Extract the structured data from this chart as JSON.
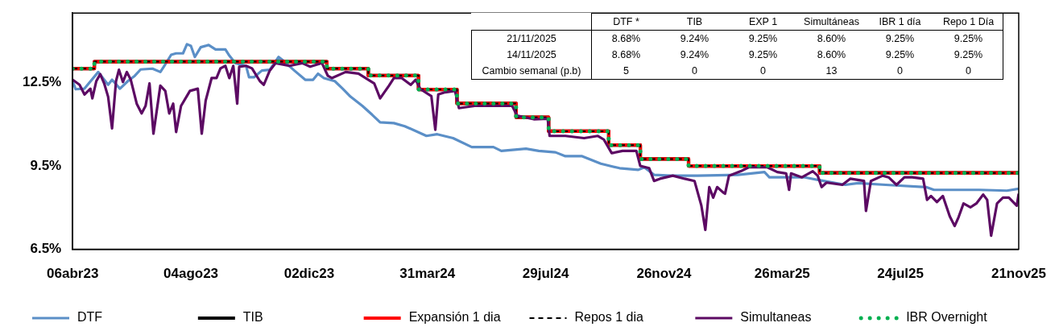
{
  "chart_data": {
    "type": "line",
    "marker": "none",
    "grid": false,
    "legend": "bottom",
    "xlim": [
      "2023-04-06",
      "2025-11-21"
    ],
    "xticks": [
      {
        "value": "2023-04-06",
        "label": "06abr23"
      },
      {
        "value": "2023-08-04",
        "label": "04ago23"
      },
      {
        "value": "2023-12-02",
        "label": "02dic23"
      },
      {
        "value": "2024-03-31",
        "label": "31mar24"
      },
      {
        "value": "2024-07-29",
        "label": "29jul24"
      },
      {
        "value": "2024-11-26",
        "label": "26nov24"
      },
      {
        "value": "2025-03-26",
        "label": "26mar25"
      },
      {
        "value": "2025-07-24",
        "label": "24jul25"
      },
      {
        "value": "2025-11-21",
        "label": "21nov25"
      }
    ],
    "ylim": [
      6.5,
      15
    ],
    "yticks": [
      {
        "value": 6.5,
        "label": "6.5%"
      },
      {
        "value": 9.5,
        "label": "9.5%"
      },
      {
        "value": 12.5,
        "label": "12.5%"
      }
    ],
    "annotations": [
      "DTF *",
      "TIB",
      "EXP 1",
      "Simultáneas",
      "IBR 1 día",
      "Repo 1 Día",
      "21/11/2025",
      "8.68%",
      "9.24%",
      "9.25%",
      "8.60%",
      "9.25%",
      "9.25%",
      "14/11/2025",
      "8.68%",
      "9.24%",
      "9.25%",
      "8.60%",
      "9.25%",
      "9.25%",
      "Cambio semanal (p.b)",
      "5",
      "0",
      "0",
      "13",
      "0",
      "0"
    ],
    "series": [
      {
        "name": "DTF",
        "color": "#5b8fc7",
        "type": "line",
        "line_style": "solid",
        "x": [
          "2023-04-06",
          "2023-04-09",
          "2023-04-18",
          "2023-05-02",
          "2023-05-12",
          "2023-05-16",
          "2023-05-24",
          "2023-06-01",
          "2023-06-08",
          "2023-06-14",
          "2023-06-26",
          "2023-07-04",
          "2023-07-08",
          "2023-07-15",
          "2023-07-20",
          "2023-07-27",
          "2023-07-31",
          "2023-08-04",
          "2023-08-08",
          "2023-08-14",
          "2023-08-22",
          "2023-08-29",
          "2023-09-08",
          "2023-09-12",
          "2023-09-18",
          "2023-09-29",
          "2023-10-02",
          "2023-10-07",
          "2023-10-15",
          "2023-10-23",
          "2023-11-01",
          "2023-11-06",
          "2023-11-17",
          "2023-11-28",
          "2023-12-06",
          "2023-12-11",
          "2023-12-17",
          "2023-12-28",
          "2024-01-05",
          "2024-01-13",
          "2024-01-25",
          "2024-02-04",
          "2024-02-12",
          "2024-02-26",
          "2024-03-08",
          "2024-03-30",
          "2024-04-10",
          "2024-04-26",
          "2024-05-15",
          "2024-06-06",
          "2024-06-14",
          "2024-07-09",
          "2024-07-22",
          "2024-08-08",
          "2024-08-18",
          "2024-09-04",
          "2024-09-23",
          "2024-10-12",
          "2024-10-31",
          "2024-11-06",
          "2024-11-16",
          "2024-12-03",
          "2024-12-30",
          "2025-02-09",
          "2025-03-08",
          "2025-03-13",
          "2025-04-18",
          "2025-05-07",
          "2025-05-29",
          "2025-06-11",
          "2025-07-09",
          "2025-08-19",
          "2025-08-27",
          "2025-10-12",
          "2025-11-09",
          "2025-11-21"
        ],
        "values": [
          12.56,
          12.26,
          12.28,
          12.88,
          12.42,
          12.6,
          12.28,
          12.55,
          12.74,
          12.97,
          13.0,
          12.88,
          13.1,
          13.5,
          13.55,
          13.55,
          13.88,
          13.82,
          13.42,
          13.77,
          13.85,
          13.69,
          13.69,
          13.47,
          13.2,
          13.1,
          12.69,
          12.69,
          12.93,
          12.96,
          13.42,
          13.28,
          12.93,
          12.6,
          12.6,
          12.82,
          12.66,
          12.55,
          12.28,
          11.99,
          11.66,
          11.34,
          11.07,
          11.04,
          10.93,
          10.58,
          10.64,
          10.5,
          10.18,
          10.18,
          10.04,
          10.12,
          10.04,
          9.99,
          9.85,
          9.85,
          9.58,
          9.42,
          9.36,
          9.45,
          9.18,
          9.15,
          9.15,
          9.18,
          9.28,
          9.09,
          9.09,
          8.96,
          8.82,
          8.88,
          8.82,
          8.74,
          8.64,
          8.64,
          8.61,
          8.68
        ]
      },
      {
        "name": "TIB",
        "color": "#000000",
        "type": "step",
        "line_style": "solid",
        "x": [
          "2023-04-06",
          "2023-04-28",
          "2023-12-20",
          "2024-01-31",
          "2024-03-22",
          "2024-04-30",
          "2024-06-29",
          "2024-08-01",
          "2024-10-01",
          "2024-11-02",
          "2024-12-21",
          "2025-05-03",
          "2025-11-21"
        ],
        "values": [
          13.0,
          13.25,
          13.0,
          12.75,
          12.25,
          11.75,
          11.25,
          10.75,
          10.25,
          9.75,
          9.5,
          9.25,
          9.25
        ]
      },
      {
        "name": "Expansión 1 dia",
        "color": "#ff0000",
        "type": "step",
        "line_style": "solid",
        "x": [
          "2023-04-06",
          "2023-04-28",
          "2023-12-20",
          "2024-01-31",
          "2024-03-22",
          "2024-04-30",
          "2024-06-29",
          "2024-08-01",
          "2024-10-01",
          "2024-11-02",
          "2024-12-21",
          "2025-05-03",
          "2025-11-21"
        ],
        "values": [
          13.0,
          13.25,
          13.0,
          12.75,
          12.25,
          11.75,
          11.25,
          10.75,
          10.25,
          9.75,
          9.5,
          9.25,
          9.25
        ]
      },
      {
        "name": "Repos 1 dia",
        "color": "#000000",
        "type": "step",
        "line_style": "dashed",
        "x": [
          "2023-04-06",
          "2023-04-28",
          "2023-12-20",
          "2024-01-31",
          "2024-03-22",
          "2024-04-30",
          "2024-06-29",
          "2024-08-01",
          "2024-10-01",
          "2024-11-02",
          "2024-12-21",
          "2025-05-03",
          "2025-11-21"
        ],
        "values": [
          13.0,
          13.25,
          13.0,
          12.75,
          12.25,
          11.75,
          11.25,
          10.75,
          10.25,
          9.75,
          9.5,
          9.25,
          9.25
        ]
      },
      {
        "name": "Simultaneas",
        "color": "#5c0a63",
        "type": "line",
        "line_style": "solid",
        "x": [
          "2023-04-06",
          "2023-04-13",
          "2023-04-18",
          "2023-04-24",
          "2023-04-26",
          "2023-04-30",
          "2023-05-04",
          "2023-05-08",
          "2023-05-12",
          "2023-05-16",
          "2023-05-20",
          "2023-05-23",
          "2023-05-27",
          "2023-05-31",
          "2023-06-04",
          "2023-06-10",
          "2023-06-15",
          "2023-06-19",
          "2023-06-23",
          "2023-06-27",
          "2023-07-04",
          "2023-07-09",
          "2023-07-13",
          "2023-07-17",
          "2023-07-20",
          "2023-07-25",
          "2023-08-03",
          "2023-08-11",
          "2023-08-15",
          "2023-08-19",
          "2023-08-25",
          "2023-08-30",
          "2023-09-03",
          "2023-09-08",
          "2023-09-12",
          "2023-09-16",
          "2023-09-20",
          "2023-09-22",
          "2023-09-29",
          "2023-10-05",
          "2023-10-13",
          "2023-10-17",
          "2023-10-23",
          "2023-10-29",
          "2023-11-12",
          "2023-11-25",
          "2023-12-03",
          "2023-12-15",
          "2023-12-21",
          "2023-12-25",
          "2024-01-08",
          "2024-01-21",
          "2024-02-06",
          "2024-02-12",
          "2024-02-21",
          "2024-02-26",
          "2024-03-05",
          "2024-03-14",
          "2024-03-19",
          "2024-03-24",
          "2024-04-04",
          "2024-04-08",
          "2024-04-11",
          "2024-04-18",
          "2024-04-28",
          "2024-05-02",
          "2024-05-18",
          "2024-06-03",
          "2024-06-25",
          "2024-06-30",
          "2024-07-17",
          "2024-07-31",
          "2024-08-02",
          "2024-08-18",
          "2024-09-06",
          "2024-09-20",
          "2024-09-26",
          "2024-10-04",
          "2024-10-15",
          "2024-10-23",
          "2024-10-29",
          "2024-11-02",
          "2024-11-11",
          "2024-11-16",
          "2024-11-22",
          "2024-12-05",
          "2024-12-17",
          "2024-12-27",
          "2025-01-03",
          "2025-01-07",
          "2025-01-11",
          "2025-01-15",
          "2025-01-19",
          "2025-01-25",
          "2025-01-27",
          "2025-01-31",
          "2025-02-12",
          "2025-02-20",
          "2025-03-11",
          "2025-03-21",
          "2025-03-30",
          "2025-04-02",
          "2025-04-04",
          "2025-04-15",
          "2025-04-26",
          "2025-05-01",
          "2025-05-05",
          "2025-05-10",
          "2025-05-26",
          "2025-06-03",
          "2025-06-17",
          "2025-06-19",
          "2025-06-24",
          "2025-07-06",
          "2025-07-12",
          "2025-07-20",
          "2025-07-28",
          "2025-08-05",
          "2025-08-16",
          "2025-08-20",
          "2025-08-24",
          "2025-08-30",
          "2025-09-05",
          "2025-09-12",
          "2025-09-17",
          "2025-09-21",
          "2025-09-26",
          "2025-10-03",
          "2025-10-09",
          "2025-10-16",
          "2025-10-20",
          "2025-10-24",
          "2025-10-30",
          "2025-11-05",
          "2025-11-11",
          "2025-11-19",
          "2025-11-21"
        ],
        "values": [
          12.6,
          12.42,
          12.07,
          12.28,
          11.93,
          12.55,
          12.8,
          12.47,
          11.99,
          10.85,
          12.55,
          12.96,
          12.52,
          12.88,
          12.6,
          11.74,
          11.39,
          11.66,
          12.47,
          10.66,
          12.39,
          12.2,
          11.39,
          11.74,
          10.72,
          11.66,
          12.2,
          12.28,
          10.66,
          11.85,
          12.66,
          12.66,
          13.01,
          13.1,
          12.66,
          13.1,
          11.74,
          13.07,
          13.1,
          13.01,
          12.55,
          12.42,
          12.93,
          13.2,
          13.1,
          13.2,
          13.07,
          13.2,
          12.74,
          12.66,
          12.88,
          12.82,
          12.47,
          11.93,
          12.39,
          12.66,
          12.66,
          12.42,
          12.6,
          12.26,
          12.01,
          10.8,
          12.07,
          12.15,
          12.2,
          11.58,
          11.66,
          11.66,
          11.66,
          11.31,
          11.18,
          11.2,
          10.58,
          10.58,
          10.5,
          10.58,
          10.45,
          9.96,
          10.04,
          10.04,
          10.04,
          9.5,
          9.42,
          8.96,
          9.04,
          9.15,
          9.04,
          8.96,
          8.07,
          7.2,
          8.74,
          8.36,
          8.74,
          8.55,
          8.5,
          9.15,
          9.31,
          9.45,
          9.45,
          9.28,
          9.23,
          8.64,
          9.23,
          9.09,
          9.31,
          9.15,
          8.74,
          8.9,
          8.82,
          9.04,
          8.96,
          7.88,
          8.96,
          9.15,
          9.09,
          8.82,
          9.09,
          9.09,
          9.04,
          8.28,
          8.42,
          8.2,
          8.42,
          7.69,
          7.34,
          7.66,
          8.15,
          8.01,
          8.15,
          8.47,
          8.28,
          6.99,
          8.15,
          8.36,
          8.36,
          8.07,
          8.5
        ]
      },
      {
        "name": "IBR Overnight",
        "color": "#00b050",
        "type": "step",
        "line_style": "dotted",
        "x": [
          "2023-04-06",
          "2023-04-28",
          "2023-12-20",
          "2024-01-31",
          "2024-03-22",
          "2024-04-30",
          "2024-06-29",
          "2024-08-01",
          "2024-10-01",
          "2024-11-02",
          "2024-12-21",
          "2025-05-03",
          "2025-11-21"
        ],
        "values": [
          13.0,
          13.25,
          13.0,
          12.75,
          12.25,
          11.75,
          11.25,
          10.75,
          10.25,
          9.75,
          9.5,
          9.25,
          9.25
        ]
      }
    ]
  }
}
